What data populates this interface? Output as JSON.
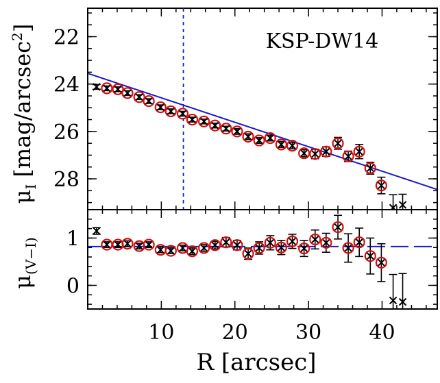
{
  "chart_data": [
    {
      "panel": "top",
      "type": "scatter",
      "annotation": "KSP-DW14",
      "xlabel": "R [arcsec]",
      "ylabel": "μ_I [mag/arcsec²]",
      "ylabel_parts": {
        "mu": "μ",
        "sub": "I",
        "unit": "[mag/arcsec",
        "sup": "2",
        "close": "]"
      },
      "xlim": [
        0,
        47.5
      ],
      "ylim": [
        29.3,
        20.8
      ],
      "y_inverted": true,
      "yticks": [
        22,
        24,
        26,
        28
      ],
      "vline_x": 13,
      "fit_line": {
        "x": [
          0,
          47.5
        ],
        "y": [
          23.55,
          28.45
        ],
        "color": "#1a1ac8"
      },
      "points": [
        {
          "x": 1.2,
          "y": 24.12,
          "err": 0.1,
          "circled": false
        },
        {
          "x": 2.6,
          "y": 24.18,
          "err": 0.1,
          "circled": true
        },
        {
          "x": 4.1,
          "y": 24.22,
          "err": 0.1,
          "circled": true
        },
        {
          "x": 5.4,
          "y": 24.38,
          "err": 0.1,
          "circled": true
        },
        {
          "x": 7.0,
          "y": 24.55,
          "err": 0.1,
          "circled": true
        },
        {
          "x": 8.3,
          "y": 24.72,
          "err": 0.1,
          "circled": true
        },
        {
          "x": 9.9,
          "y": 24.98,
          "err": 0.1,
          "circled": true
        },
        {
          "x": 11.3,
          "y": 25.15,
          "err": 0.1,
          "circled": true
        },
        {
          "x": 12.9,
          "y": 25.25,
          "err": 0.1,
          "circled": true
        },
        {
          "x": 14.2,
          "y": 25.5,
          "err": 0.1,
          "circled": true
        },
        {
          "x": 15.8,
          "y": 25.58,
          "err": 0.1,
          "circled": true
        },
        {
          "x": 17.3,
          "y": 25.75,
          "err": 0.1,
          "circled": true
        },
        {
          "x": 18.8,
          "y": 25.88,
          "err": 0.1,
          "circled": true
        },
        {
          "x": 20.3,
          "y": 26.0,
          "err": 0.12,
          "circled": true
        },
        {
          "x": 21.8,
          "y": 26.22,
          "err": 0.12,
          "circled": true
        },
        {
          "x": 23.3,
          "y": 26.38,
          "err": 0.12,
          "circled": true
        },
        {
          "x": 24.8,
          "y": 26.28,
          "err": 0.12,
          "circled": true
        },
        {
          "x": 26.3,
          "y": 26.55,
          "err": 0.13,
          "circled": true
        },
        {
          "x": 27.8,
          "y": 26.6,
          "err": 0.13,
          "circled": true
        },
        {
          "x": 29.4,
          "y": 26.92,
          "err": 0.15,
          "circled": true
        },
        {
          "x": 30.9,
          "y": 26.95,
          "err": 0.2,
          "circled": true
        },
        {
          "x": 32.4,
          "y": 26.85,
          "err": 0.2,
          "circled": true
        },
        {
          "x": 34.0,
          "y": 26.5,
          "err": 0.25,
          "circled": true
        },
        {
          "x": 35.4,
          "y": 27.05,
          "err": 0.22,
          "circled": true
        },
        {
          "x": 36.9,
          "y": 26.85,
          "err": 0.3,
          "circled": true
        },
        {
          "x": 38.4,
          "y": 27.55,
          "err": 0.25,
          "circled": true
        },
        {
          "x": 39.9,
          "y": 28.28,
          "err": 0.35,
          "circled": true
        },
        {
          "x": 41.5,
          "y": 29.22,
          "err": 0.55,
          "circled": false
        },
        {
          "x": 42.8,
          "y": 29.1,
          "err": 0.45,
          "circled": false
        }
      ]
    },
    {
      "panel": "bottom",
      "type": "scatter",
      "xlabel": "R [arcsec]",
      "ylabel": "μ_(V−I)",
      "ylabel_parts": {
        "mu": "μ",
        "sub": "(V−I)"
      },
      "xlim": [
        0,
        47.5
      ],
      "ylim": [
        -0.5,
        1.6
      ],
      "yticks": [
        0,
        1
      ],
      "xticks": [
        10,
        20,
        30,
        40
      ],
      "ref_line": {
        "y": 0.82,
        "color": "#1a1ac8",
        "style": "long-dash"
      },
      "points": [
        {
          "x": 1.2,
          "y": 1.15,
          "err": 0.07,
          "circled": false
        },
        {
          "x": 2.6,
          "y": 0.86,
          "err": 0.06,
          "circled": true
        },
        {
          "x": 4.1,
          "y": 0.86,
          "err": 0.06,
          "circled": true
        },
        {
          "x": 5.4,
          "y": 0.88,
          "err": 0.06,
          "circled": true
        },
        {
          "x": 7.0,
          "y": 0.83,
          "err": 0.06,
          "circled": true
        },
        {
          "x": 8.3,
          "y": 0.86,
          "err": 0.06,
          "circled": true
        },
        {
          "x": 9.9,
          "y": 0.75,
          "err": 0.06,
          "circled": true
        },
        {
          "x": 11.3,
          "y": 0.73,
          "err": 0.06,
          "circled": true
        },
        {
          "x": 12.9,
          "y": 0.79,
          "err": 0.06,
          "circled": true
        },
        {
          "x": 14.2,
          "y": 0.72,
          "err": 0.07,
          "circled": true
        },
        {
          "x": 15.8,
          "y": 0.79,
          "err": 0.07,
          "circled": true
        },
        {
          "x": 17.3,
          "y": 0.85,
          "err": 0.08,
          "circled": true
        },
        {
          "x": 18.8,
          "y": 0.91,
          "err": 0.1,
          "circled": true
        },
        {
          "x": 20.3,
          "y": 0.85,
          "err": 0.1,
          "circled": true
        },
        {
          "x": 21.8,
          "y": 0.67,
          "err": 0.12,
          "circled": true
        },
        {
          "x": 23.3,
          "y": 0.79,
          "err": 0.13,
          "circled": true
        },
        {
          "x": 24.8,
          "y": 0.9,
          "err": 0.15,
          "circled": true
        },
        {
          "x": 26.3,
          "y": 0.8,
          "err": 0.15,
          "circled": true
        },
        {
          "x": 27.8,
          "y": 0.93,
          "err": 0.15,
          "circled": true
        },
        {
          "x": 29.4,
          "y": 0.78,
          "err": 0.17,
          "circled": true
        },
        {
          "x": 30.9,
          "y": 0.97,
          "err": 0.2,
          "circled": true
        },
        {
          "x": 32.4,
          "y": 0.9,
          "err": 0.2,
          "circled": true
        },
        {
          "x": 34.0,
          "y": 1.23,
          "err": 0.25,
          "circled": true
        },
        {
          "x": 35.4,
          "y": 0.79,
          "err": 0.3,
          "circled": true
        },
        {
          "x": 36.9,
          "y": 0.91,
          "err": 0.3,
          "circled": true
        },
        {
          "x": 38.4,
          "y": 0.62,
          "err": 0.38,
          "circled": true
        },
        {
          "x": 39.9,
          "y": 0.48,
          "err": 0.4,
          "circled": true
        },
        {
          "x": 41.5,
          "y": -0.32,
          "err": 0.55,
          "circled": false
        },
        {
          "x": 42.8,
          "y": -0.35,
          "err": 0.6,
          "circled": false
        }
      ]
    }
  ]
}
